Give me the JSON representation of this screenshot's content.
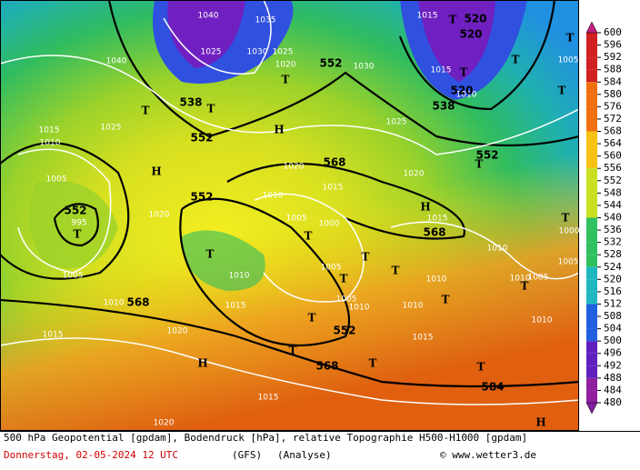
{
  "map": {
    "contour_labels_gpdam": [
      552,
      552,
      552,
      552,
      552,
      552,
      568,
      568,
      568,
      568,
      584,
      538,
      538,
      520,
      520,
      520
    ],
    "isobar_labels_hPa": [
      1040,
      1040,
      1035,
      1025,
      1030,
      1025,
      1020,
      1030,
      1015,
      1015,
      1010,
      1025,
      1015,
      1010,
      1025,
      1005,
      995,
      1005,
      1010,
      1015,
      1020,
      1020,
      1020,
      1015,
      1010,
      1015,
      1010,
      1005,
      1000,
      1015,
      1020,
      1020,
      1015,
      1005,
      1005,
      1010,
      1010,
      1010,
      1015,
      1010,
      1010,
      1005,
      1010,
      1000,
      1005,
      1005
    ],
    "pressure_centers": [
      "H",
      "H",
      "H",
      "H",
      "H",
      "T",
      "T",
      "T",
      "T",
      "T",
      "T",
      "T",
      "T",
      "T",
      "T",
      "T",
      "T",
      "T",
      "T",
      "T",
      "T",
      "T",
      "T",
      "T",
      "T",
      "T",
      "T"
    ]
  },
  "colorbar": {
    "ticks": [
      600,
      596,
      592,
      588,
      584,
      580,
      576,
      572,
      568,
      564,
      560,
      556,
      552,
      548,
      544,
      540,
      536,
      532,
      528,
      524,
      520,
      516,
      512,
      508,
      504,
      500,
      496,
      492,
      488,
      484,
      480
    ]
  },
  "footer": {
    "description": "500 hPa Geopotential [gpdam], Bodendruck [hPa], relative Topographie H500-H1000 [gpdam]",
    "date": "Donnerstag, 02-05-2024  12 UTC",
    "model": "(GFS)",
    "run": "(Analyse)",
    "credit": "© www.wetter3.de"
  }
}
